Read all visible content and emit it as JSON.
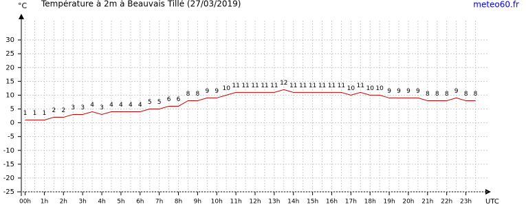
{
  "chart_data": {
    "type": "line",
    "title": "Température à 2m à Beauvais Tillé (27/03/2019)",
    "source": "meteo60.fr",
    "y_label": "°C",
    "x_label": "UTC",
    "x": [
      0,
      0.5,
      1,
      1.5,
      2,
      2.5,
      3,
      3.5,
      4,
      4.5,
      5,
      5.5,
      6,
      6.5,
      7,
      7.5,
      8,
      8.5,
      9,
      9.5,
      10,
      10.5,
      11,
      11.5,
      12,
      12.5,
      13,
      13.5,
      14,
      14.5,
      15,
      15.5,
      16,
      16.5,
      17,
      17.5,
      18,
      18.5,
      19,
      19.5,
      20,
      20.5,
      21,
      21.5,
      22,
      22.5,
      23,
      23.5
    ],
    "series": [
      {
        "name": "Température",
        "color": "#cc0000",
        "values": [
          1,
          1,
          1,
          2,
          2,
          3,
          3,
          4,
          3,
          4,
          4,
          4,
          4,
          5,
          5,
          6,
          6,
          8,
          8,
          9,
          9,
          10,
          11,
          11,
          11,
          11,
          11,
          12,
          11,
          11,
          11,
          11,
          11,
          11,
          10,
          11,
          10,
          10,
          9,
          9,
          9,
          9,
          8,
          8,
          8,
          9,
          8,
          8
        ]
      }
    ],
    "xlim": [
      -0.2,
      24.2
    ],
    "ylim": [
      -25,
      35
    ],
    "xticks": [
      {
        "value": 0,
        "label": "00h"
      },
      {
        "value": 1,
        "label": "1h"
      },
      {
        "value": 2,
        "label": "2h"
      },
      {
        "value": 3,
        "label": "3h"
      },
      {
        "value": 4,
        "label": "4h"
      },
      {
        "value": 5,
        "label": "5h"
      },
      {
        "value": 6,
        "label": "6h"
      },
      {
        "value": 7,
        "label": "7h"
      },
      {
        "value": 8,
        "label": "8h"
      },
      {
        "value": 9,
        "label": "9h"
      },
      {
        "value": 10,
        "label": "10h"
      },
      {
        "value": 11,
        "label": "11h"
      },
      {
        "value": 12,
        "label": "12h"
      },
      {
        "value": 13,
        "label": "13h"
      },
      {
        "value": 14,
        "label": "14h"
      },
      {
        "value": 15,
        "label": "15h"
      },
      {
        "value": 16,
        "label": "16h"
      },
      {
        "value": 17,
        "label": "17h"
      },
      {
        "value": 18,
        "label": "18h"
      },
      {
        "value": 19,
        "label": "19h"
      },
      {
        "value": 20,
        "label": "20h"
      },
      {
        "value": 21,
        "label": "21h"
      },
      {
        "value": 22,
        "label": "22h"
      },
      {
        "value": 23,
        "label": "23h"
      }
    ],
    "yticks": [
      -25,
      -20,
      -15,
      -10,
      -5,
      0,
      5,
      10,
      15,
      20,
      25,
      30
    ],
    "grid": true
  }
}
